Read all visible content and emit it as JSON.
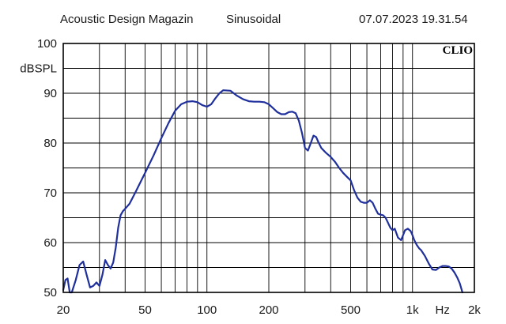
{
  "header": {
    "publisher": "Acoustic Design Magazin",
    "signal": "Sinusoidal",
    "timestamp": "07.07.2023 19.31.54"
  },
  "brand": "CLIO",
  "chart_data": {
    "type": "line",
    "title": "",
    "xlabel": "Hz",
    "ylabel": "dBSPL",
    "x_scale": "log",
    "xlim": [
      20,
      2000
    ],
    "ylim": [
      50,
      100
    ],
    "grid": true,
    "x_tick_values": [
      20,
      50,
      100,
      200,
      500,
      1000,
      2000
    ],
    "x_tick_labels": [
      "20",
      "50",
      "100",
      "200",
      "500",
      "1k",
      "2k"
    ],
    "y_tick_values": [
      50,
      60,
      70,
      80,
      90,
      100
    ],
    "y_tick_labels": [
      "50",
      "60",
      "70",
      "80",
      "90",
      "100"
    ],
    "line_color": "#1f2f9c",
    "series": [
      {
        "x": [
          20,
          20.5,
          21,
          21.5,
          22,
          23,
          24,
          25,
          26,
          27,
          28,
          29,
          30,
          31,
          32,
          33,
          34,
          35,
          36,
          37,
          38,
          39,
          40,
          42,
          45,
          50,
          55,
          60,
          65,
          70,
          75,
          80,
          85,
          90,
          95,
          100,
          105,
          110,
          115,
          120,
          130,
          140,
          150,
          160,
          170,
          180,
          190,
          200,
          210,
          220,
          230,
          240,
          250,
          260,
          270,
          280,
          290,
          300,
          310,
          320,
          330,
          340,
          350,
          360,
          380,
          400,
          420,
          440,
          460,
          480,
          500,
          520,
          540,
          560,
          580,
          600,
          620,
          640,
          660,
          680,
          700,
          720,
          740,
          760,
          780,
          800,
          820,
          850,
          880,
          900,
          920,
          950,
          980,
          1000,
          1020,
          1050,
          1080,
          1100,
          1150,
          1200,
          1250,
          1300,
          1350,
          1400,
          1450,
          1500,
          1550,
          1600,
          1650,
          1700,
          1750
        ],
        "y": [
          50.5,
          52.5,
          52.8,
          50.0,
          50.0,
          52.5,
          55.5,
          56.2,
          53.5,
          51.0,
          51.3,
          52.0,
          51.3,
          53.5,
          56.5,
          55.5,
          54.8,
          56.0,
          59.0,
          63.0,
          65.5,
          66.3,
          66.8,
          67.8,
          70.2,
          74.0,
          77.5,
          81.0,
          84.0,
          86.5,
          87.8,
          88.3,
          88.4,
          88.2,
          87.6,
          87.3,
          87.8,
          89.0,
          90.0,
          90.6,
          90.5,
          89.5,
          88.8,
          88.4,
          88.3,
          88.3,
          88.2,
          87.8,
          87.0,
          86.2,
          85.8,
          85.8,
          86.2,
          86.3,
          86.0,
          84.5,
          82.0,
          79.0,
          78.5,
          80.0,
          81.5,
          81.2,
          80.0,
          79.0,
          78.0,
          77.2,
          76.2,
          75.0,
          74.0,
          73.2,
          72.5,
          70.5,
          69.0,
          68.2,
          68.0,
          68.0,
          68.5,
          68.0,
          66.8,
          65.8,
          65.6,
          65.5,
          65.0,
          64.0,
          63.0,
          62.5,
          62.8,
          61.0,
          60.5,
          61.5,
          62.5,
          62.8,
          62.3,
          61.5,
          60.5,
          59.5,
          58.8,
          58.5,
          57.3,
          55.8,
          54.6,
          54.5,
          55.0,
          55.3,
          55.3,
          55.2,
          54.8,
          54.0,
          53.0,
          51.8,
          50.0
        ]
      }
    ]
  }
}
